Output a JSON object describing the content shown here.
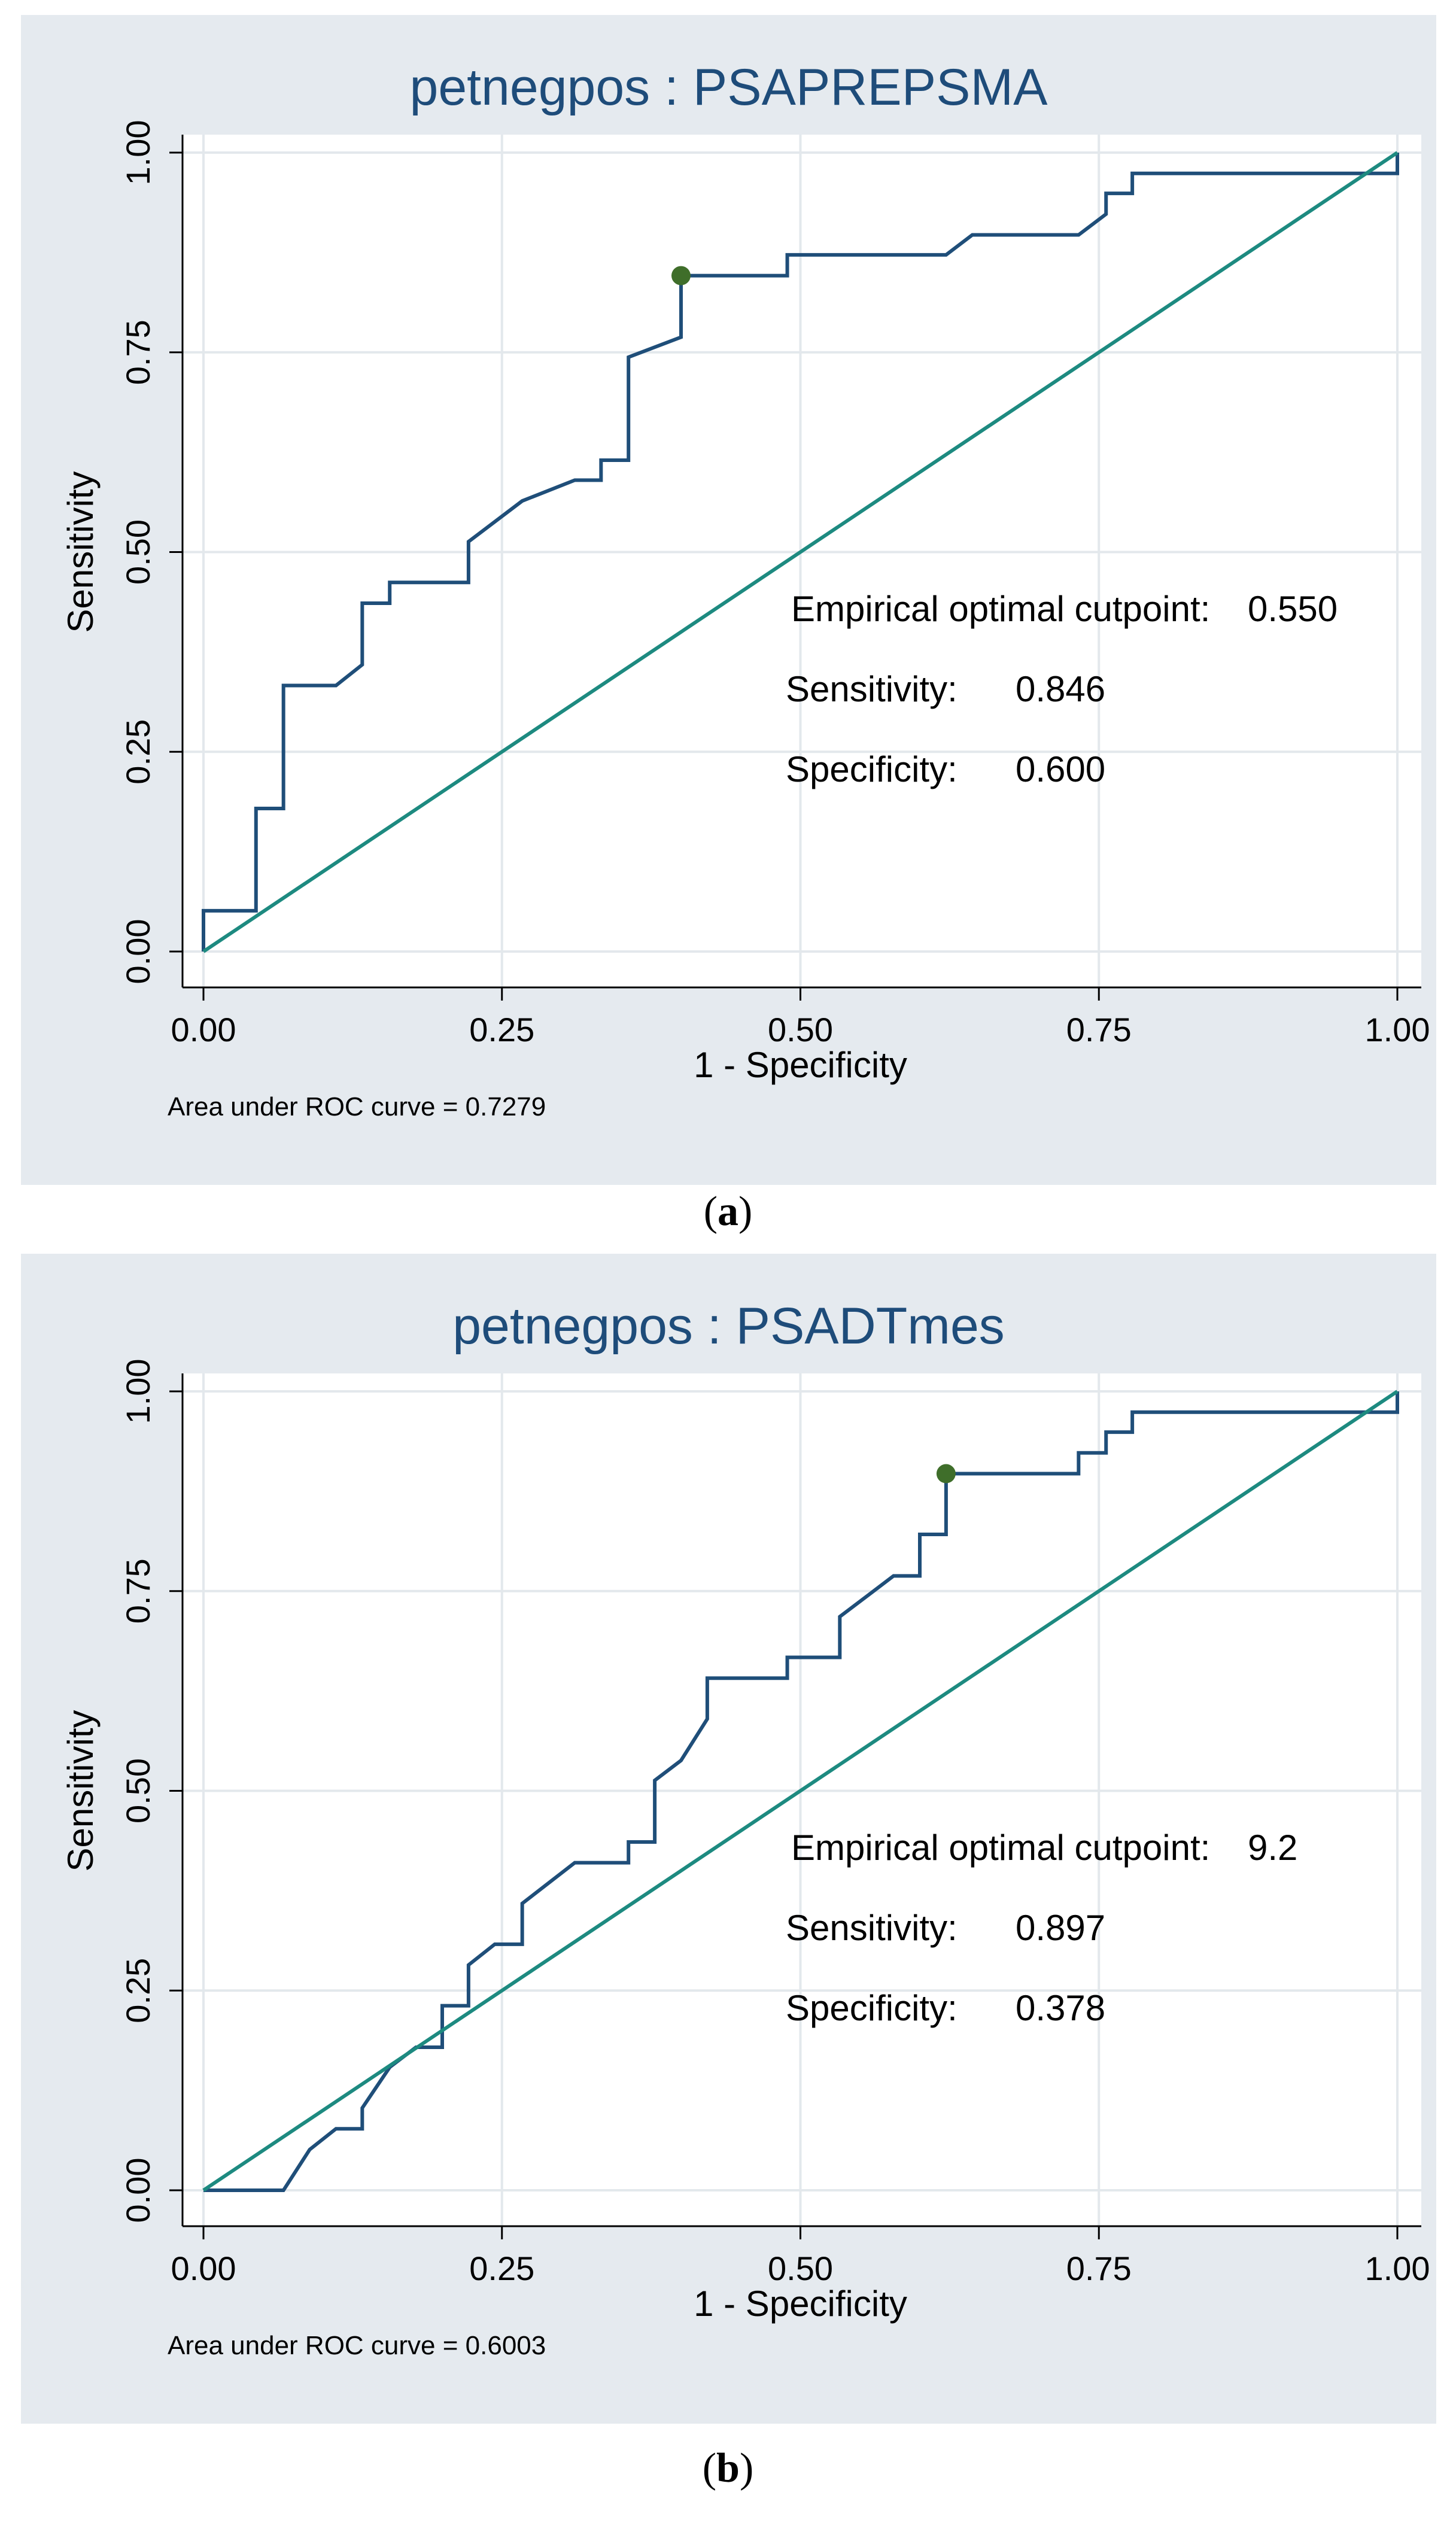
{
  "chart_data": [
    {
      "type": "line",
      "panel": "(a)",
      "title": "petnegpos : PSAPREPSMA",
      "xlabel": "1 - Specificity",
      "ylabel": "Sensitivity",
      "xlim": [
        0,
        1
      ],
      "ylim": [
        0,
        1
      ],
      "xticks": [
        "0.00",
        "0.25",
        "0.50",
        "0.75",
        "1.00"
      ],
      "yticks": [
        "0.00",
        "0.25",
        "0.50",
        "0.75",
        "1.00"
      ],
      "grid": true,
      "auc_label": "Area under ROC curve = 0.7279",
      "annotations": {
        "cutpoint_label": "Empirical optimal cutpoint:",
        "cutpoint_value": "0.550",
        "sensitivity_label": "Sensitivity:",
        "sensitivity_value": "0.846",
        "specificity_label": "Specificity:",
        "specificity_value": "0.600"
      },
      "optimal_point": {
        "x": 0.4,
        "y": 0.846
      },
      "series": [
        {
          "name": "ROC curve",
          "color": "#1f4e79",
          "x": [
            0,
            0,
            0.044,
            0.044,
            0.067,
            0.067,
            0.111,
            0.133,
            0.133,
            0.156,
            0.156,
            0.222,
            0.222,
            0.267,
            0.311,
            0.333,
            0.333,
            0.356,
            0.356,
            0.4,
            0.4,
            0.489,
            0.489,
            0.622,
            0.644,
            0.733,
            0.756,
            0.756,
            0.778,
            0.778,
            1.0,
            1.0
          ],
          "y": [
            0,
            0.051,
            0.051,
            0.179,
            0.179,
            0.333,
            0.333,
            0.359,
            0.436,
            0.436,
            0.462,
            0.462,
            0.513,
            0.564,
            0.59,
            0.59,
            0.615,
            0.615,
            0.744,
            0.769,
            0.846,
            0.846,
            0.872,
            0.872,
            0.897,
            0.897,
            0.923,
            0.949,
            0.949,
            0.974,
            0.974,
            1.0
          ]
        },
        {
          "name": "Reference",
          "color": "#1d8a80",
          "x": [
            0,
            1
          ],
          "y": [
            0,
            1
          ]
        }
      ]
    },
    {
      "type": "line",
      "panel": "(b)",
      "title": "petnegpos : PSADTmes",
      "xlabel": "1 - Specificity",
      "ylabel": "Sensitivity",
      "xlim": [
        0,
        1
      ],
      "ylim": [
        0,
        1
      ],
      "xticks": [
        "0.00",
        "0.25",
        "0.50",
        "0.75",
        "1.00"
      ],
      "yticks": [
        "0.00",
        "0.25",
        "0.50",
        "0.75",
        "1.00"
      ],
      "grid": true,
      "auc_label": "Area under ROC curve = 0.6003",
      "annotations": {
        "cutpoint_label": "Empirical optimal cutpoint:",
        "cutpoint_value": "9.2",
        "sensitivity_label": "Sensitivity:",
        "sensitivity_value": "0.897",
        "specificity_label": "Specificity:",
        "specificity_value": "0.378"
      },
      "optimal_point": {
        "x": 0.622,
        "y": 0.897
      },
      "series": [
        {
          "name": "ROC curve",
          "color": "#1f4e79",
          "x": [
            0,
            0.067,
            0.089,
            0.111,
            0.133,
            0.133,
            0.156,
            0.178,
            0.2,
            0.2,
            0.222,
            0.222,
            0.244,
            0.267,
            0.267,
            0.311,
            0.356,
            0.356,
            0.378,
            0.378,
            0.4,
            0.422,
            0.422,
            0.489,
            0.489,
            0.533,
            0.533,
            0.556,
            0.578,
            0.6,
            0.6,
            0.622,
            0.622,
            0.733,
            0.733,
            0.756,
            0.756,
            0.778,
            0.778,
            1.0,
            1.0
          ],
          "y": [
            0,
            0,
            0.051,
            0.077,
            0.077,
            0.103,
            0.154,
            0.179,
            0.179,
            0.231,
            0.231,
            0.282,
            0.308,
            0.308,
            0.359,
            0.41,
            0.41,
            0.436,
            0.436,
            0.513,
            0.538,
            0.59,
            0.641,
            0.641,
            0.667,
            0.667,
            0.718,
            0.744,
            0.769,
            0.769,
            0.821,
            0.821,
            0.897,
            0.897,
            0.923,
            0.923,
            0.949,
            0.949,
            0.974,
            0.974,
            1.0
          ]
        },
        {
          "name": "Reference",
          "color": "#1d8a80",
          "x": [
            0,
            1
          ],
          "y": [
            0,
            1
          ]
        }
      ]
    }
  ],
  "captions": [
    "a",
    "b"
  ],
  "colors": {
    "curve": "#1f4e79",
    "reference": "#1d8a80",
    "optimal_point": "#3f6e2a",
    "panel_background": "#e5eaef",
    "title": "#1e4c7a"
  }
}
